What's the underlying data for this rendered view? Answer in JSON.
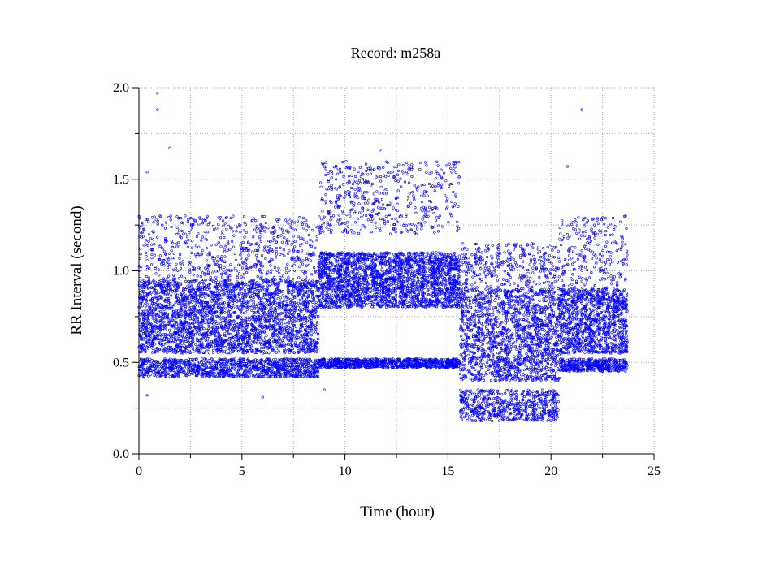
{
  "chart_data": {
    "type": "scatter",
    "title": "Record:  m258a",
    "xlabel": "Time (hour)",
    "ylabel": "RR Interval (second)",
    "xlim": [
      0,
      25
    ],
    "ylim": [
      0.0,
      2.0
    ],
    "x_ticks": [
      "0",
      "5",
      "10",
      "15",
      "20",
      "25"
    ],
    "y_ticks": [
      "0.0",
      "0.5",
      "1.0",
      "1.5",
      "2.0"
    ],
    "grid": true,
    "marker_color": "#0000ff",
    "x_data_range": [
      0.0,
      23.7
    ],
    "segments": [
      {
        "start": 0.0,
        "end": 8.7,
        "main_band": [
          0.55,
          0.95
        ],
        "low_band": [
          0.42,
          0.52
        ],
        "high_band": [
          0.95,
          1.3
        ]
      },
      {
        "start": 8.7,
        "end": 15.6,
        "main_band": [
          0.8,
          1.1
        ],
        "low_band": [
          0.47,
          0.52
        ],
        "high_band": [
          1.2,
          1.6
        ]
      },
      {
        "start": 15.6,
        "end": 20.4,
        "main_band": [
          0.4,
          0.9
        ],
        "low_band": [
          0.18,
          0.35
        ],
        "high_band": [
          0.9,
          1.15
        ]
      },
      {
        "start": 20.4,
        "end": 23.7,
        "main_band": [
          0.55,
          0.9
        ],
        "low_band": [
          0.45,
          0.52
        ],
        "high_band": [
          0.9,
          1.3
        ]
      }
    ],
    "outliers": [
      {
        "x": 0.9,
        "y": 1.97
      },
      {
        "x": 0.9,
        "y": 1.88
      },
      {
        "x": 1.5,
        "y": 1.67
      },
      {
        "x": 0.4,
        "y": 1.54
      },
      {
        "x": 11.7,
        "y": 1.66
      },
      {
        "x": 21.5,
        "y": 1.88
      },
      {
        "x": 20.8,
        "y": 1.57
      },
      {
        "x": 6.0,
        "y": 0.31
      },
      {
        "x": 0.4,
        "y": 0.32
      },
      {
        "x": 9.0,
        "y": 0.35
      }
    ]
  }
}
